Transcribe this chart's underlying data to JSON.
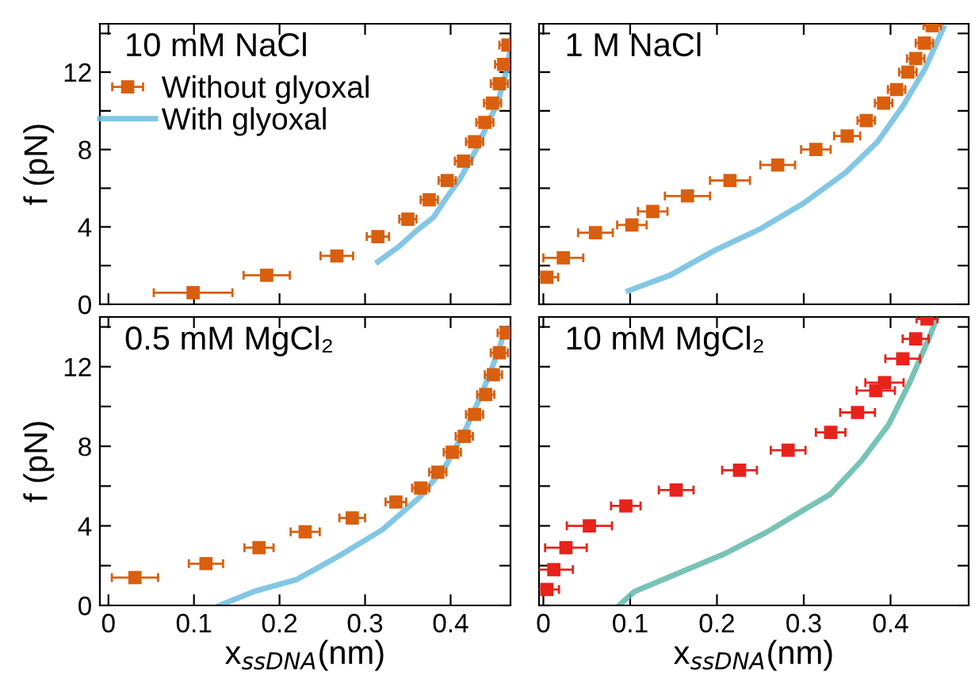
{
  "chart_data": [
    {
      "type": "scatter",
      "annotations": [
        "10 mM NaCl"
      ],
      "ylabel": "f (pN)",
      "xlim": [
        -0.01,
        0.47
      ],
      "ylim": [
        0,
        14.5
      ],
      "xticks": [
        0,
        0.1,
        0.2,
        0.3,
        0.4
      ],
      "yticks": [
        0,
        {
          "value": 2,
          "label": null
        },
        4,
        {
          "value": 6,
          "label": null
        },
        8,
        {
          "value": 10,
          "label": null
        },
        12,
        {
          "value": 14,
          "label": null
        }
      ],
      "tick_labels": "y",
      "grid": false,
      "legend": "top left",
      "series": [
        {
          "name": "Without glyoxal",
          "marker": "square",
          "color": "#d95f0e",
          "x": [
            0.099,
            0.185,
            0.267,
            0.315,
            0.35,
            0.375,
            0.396,
            0.415,
            0.428,
            0.44,
            0.449,
            0.457,
            0.462,
            0.467
          ],
          "values": [
            0.6,
            1.5,
            2.5,
            3.5,
            4.4,
            5.4,
            6.4,
            7.4,
            8.4,
            9.4,
            10.4,
            11.4,
            12.4,
            13.4
          ],
          "xerrors": [
            0.046,
            0.027,
            0.019,
            0.013,
            0.01,
            0.01,
            0.01,
            0.01,
            0.01,
            0.01,
            0.01,
            0.01,
            0.01,
            0.01
          ]
        },
        {
          "name": "With glyoxal",
          "type": "line",
          "marker": "none",
          "color": "#6cbde0",
          "x": [
            0.315,
            0.34,
            0.36,
            0.38,
            0.395,
            0.41,
            0.43,
            0.445,
            0.455,
            0.465,
            0.469
          ],
          "values": [
            2.2,
            3.0,
            3.8,
            4.5,
            5.5,
            6.4,
            8.0,
            9.5,
            10.4,
            12.0,
            13.0
          ]
        }
      ]
    },
    {
      "type": "scatter",
      "annotations": [
        "1 M NaCl"
      ],
      "xlim": [
        -0.005,
        0.49
      ],
      "ylim": [
        0,
        14.5
      ],
      "xticks": [
        0,
        0.1,
        0.2,
        0.3,
        0.4
      ],
      "yticks": [
        0,
        {
          "value": 2,
          "label": null
        },
        4,
        {
          "value": 6,
          "label": null
        },
        8,
        {
          "value": 10,
          "label": null
        },
        12,
        {
          "value": 14,
          "label": null
        }
      ],
      "tick_labels": false,
      "grid": false,
      "series": [
        {
          "marker": "square",
          "color": "#d95f0e",
          "x": [
            0.004,
            0.023,
            0.06,
            0.102,
            0.126,
            0.166,
            0.215,
            0.27,
            0.314,
            0.35,
            0.372,
            0.392,
            0.407,
            0.42,
            0.429,
            0.439,
            0.448
          ],
          "values": [
            1.4,
            2.4,
            3.7,
            4.1,
            4.8,
            5.6,
            6.4,
            7.2,
            8.0,
            8.7,
            9.5,
            10.4,
            11.1,
            12.0,
            12.7,
            13.5,
            14.4
          ],
          "xerrors": [
            0.013,
            0.023,
            0.02,
            0.017,
            0.017,
            0.026,
            0.023,
            0.02,
            0.017,
            0.015,
            0.01,
            0.01,
            0.01,
            0.01,
            0.01,
            0.01,
            0.01
          ]
        },
        {
          "type": "line",
          "marker": "none",
          "color": "#6cbde0",
          "x": [
            0.098,
            0.146,
            0.198,
            0.25,
            0.299,
            0.348,
            0.385,
            0.415,
            0.44,
            0.461
          ],
          "values": [
            0.7,
            1.5,
            2.8,
            3.9,
            5.2,
            6.8,
            8.4,
            10.3,
            12.2,
            14.3
          ]
        }
      ]
    },
    {
      "type": "scatter",
      "annotations": [
        "0.5 mM MgCl₂"
      ],
      "xlabel": "x$_{ssDNA}$(nm)",
      "ylabel": "f (pN)",
      "xlim": [
        -0.01,
        0.47
      ],
      "ylim": [
        0,
        14.5
      ],
      "xticks": [
        0,
        0.1,
        0.2,
        0.3,
        0.4
      ],
      "yticks": [
        0,
        {
          "value": 2,
          "label": null
        },
        4,
        {
          "value": 6,
          "label": null
        },
        8,
        {
          "value": 10,
          "label": null
        },
        12,
        {
          "value": 14,
          "label": null
        }
      ],
      "grid": false,
      "series": [
        {
          "marker": "square",
          "color": "#d95f0e",
          "x": [
            0.031,
            0.114,
            0.176,
            0.23,
            0.285,
            0.336,
            0.365,
            0.385,
            0.402,
            0.416,
            0.428,
            0.441,
            0.45,
            0.457,
            0.465
          ],
          "values": [
            1.4,
            2.1,
            2.9,
            3.7,
            4.4,
            5.2,
            5.9,
            6.7,
            7.7,
            8.5,
            9.6,
            10.6,
            11.6,
            12.7,
            13.7
          ],
          "xerrors": [
            0.027,
            0.02,
            0.017,
            0.017,
            0.015,
            0.012,
            0.01,
            0.01,
            0.01,
            0.01,
            0.01,
            0.01,
            0.01,
            0.01,
            0.01
          ]
        },
        {
          "type": "line",
          "marker": "none",
          "color": "#6cbde0",
          "x": [
            0.13,
            0.17,
            0.22,
            0.27,
            0.32,
            0.363,
            0.394,
            0.418,
            0.437,
            0.456,
            0.464
          ],
          "values": [
            0,
            0.7,
            1.3,
            2.5,
            3.8,
            5.4,
            7.0,
            8.9,
            10.7,
            12.8,
            13.9
          ]
        }
      ]
    },
    {
      "type": "scatter",
      "annotations": [
        "10 mM MgCl₂"
      ],
      "xlabel": "x$_{ssDNA}$(nm)",
      "xlim": [
        -0.005,
        0.49
      ],
      "ylim": [
        0,
        14.5
      ],
      "xticks": [
        0,
        0.1,
        0.2,
        0.3,
        0.4
      ],
      "yticks": [
        0,
        {
          "value": 2,
          "label": null
        },
        4,
        {
          "value": 6,
          "label": null
        },
        8,
        {
          "value": 10,
          "label": null
        },
        12,
        {
          "value": 14,
          "label": null
        }
      ],
      "tick_labels": "x",
      "grid": false,
      "series": [
        {
          "marker": "square",
          "color": "#e8231c",
          "x": [
            0.004,
            0.012,
            0.026,
            0.053,
            0.095,
            0.153,
            0.226,
            0.282,
            0.331,
            0.362,
            0.383,
            0.393,
            0.414,
            0.429,
            0.442
          ],
          "values": [
            0.8,
            1.8,
            2.9,
            4.0,
            5.0,
            5.8,
            6.8,
            7.8,
            8.7,
            9.7,
            10.8,
            11.2,
            12.4,
            13.4,
            14.4
          ],
          "xerrors": [
            0.014,
            0.022,
            0.024,
            0.026,
            0.017,
            0.02,
            0.02,
            0.02,
            0.017,
            0.02,
            0.022,
            0.022,
            0.02,
            0.015,
            0.012
          ]
        },
        {
          "type": "line",
          "marker": "none",
          "color": "#5fb8a8",
          "x": [
            0.087,
            0.105,
            0.16,
            0.209,
            0.258,
            0.3,
            0.331,
            0.367,
            0.398,
            0.422,
            0.444,
            0.453
          ],
          "values": [
            0,
            0.7,
            1.7,
            2.6,
            3.7,
            4.8,
            5.6,
            7.3,
            9.1,
            11.2,
            13.4,
            14.4
          ]
        }
      ]
    }
  ]
}
